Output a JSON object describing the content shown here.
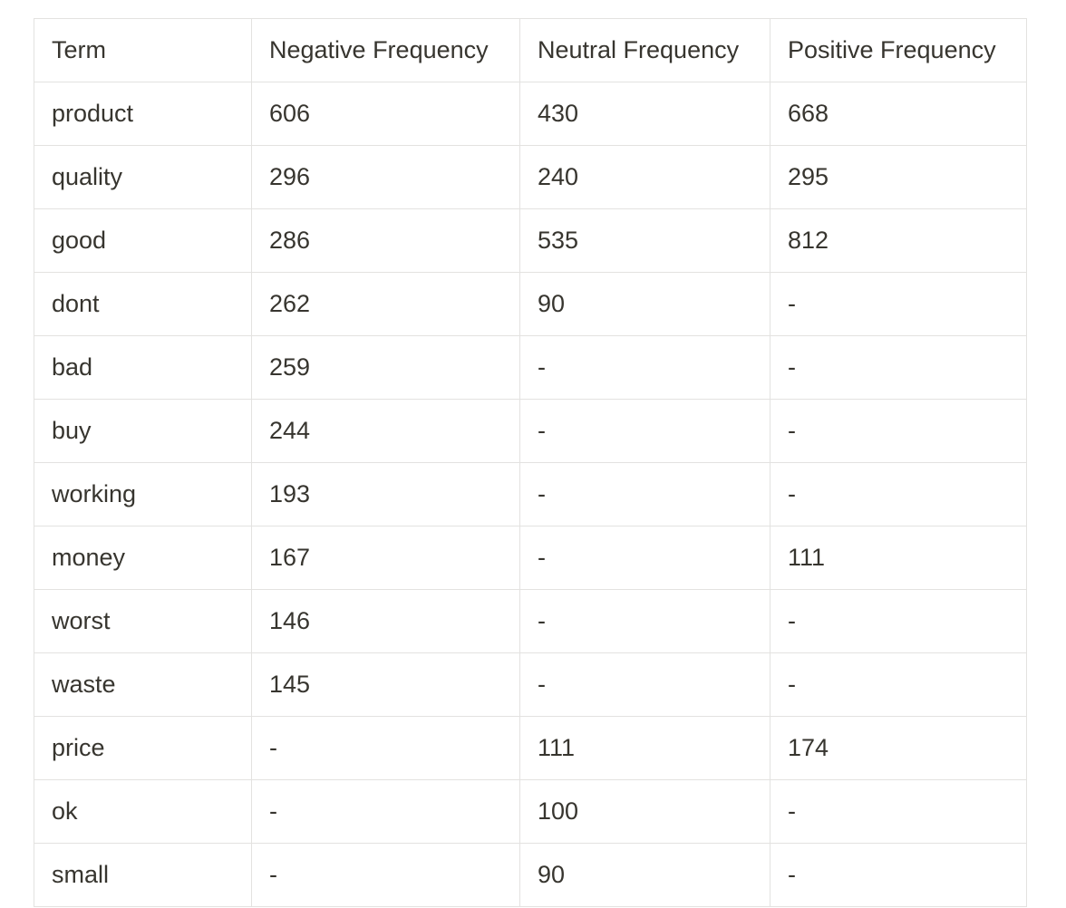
{
  "table": {
    "headers": [
      "Term",
      "Negative Frequency",
      "Neutral Frequency",
      "Positive Frequency"
    ],
    "rows": [
      [
        "product",
        "606",
        "430",
        "668"
      ],
      [
        "quality",
        "296",
        "240",
        "295"
      ],
      [
        "good",
        "286",
        "535",
        "812"
      ],
      [
        "dont",
        "262",
        "90",
        "-"
      ],
      [
        "bad",
        "259",
        "-",
        "-"
      ],
      [
        "buy",
        "244",
        "-",
        "-"
      ],
      [
        "working",
        "193",
        "-",
        "-"
      ],
      [
        "money",
        "167",
        "-",
        "111"
      ],
      [
        "worst",
        "146",
        "-",
        "-"
      ],
      [
        "waste",
        "145",
        "-",
        "-"
      ],
      [
        "price",
        "-",
        "111",
        "174"
      ],
      [
        "ok",
        "-",
        "100",
        "-"
      ],
      [
        "small",
        "-",
        "90",
        "-"
      ]
    ]
  }
}
